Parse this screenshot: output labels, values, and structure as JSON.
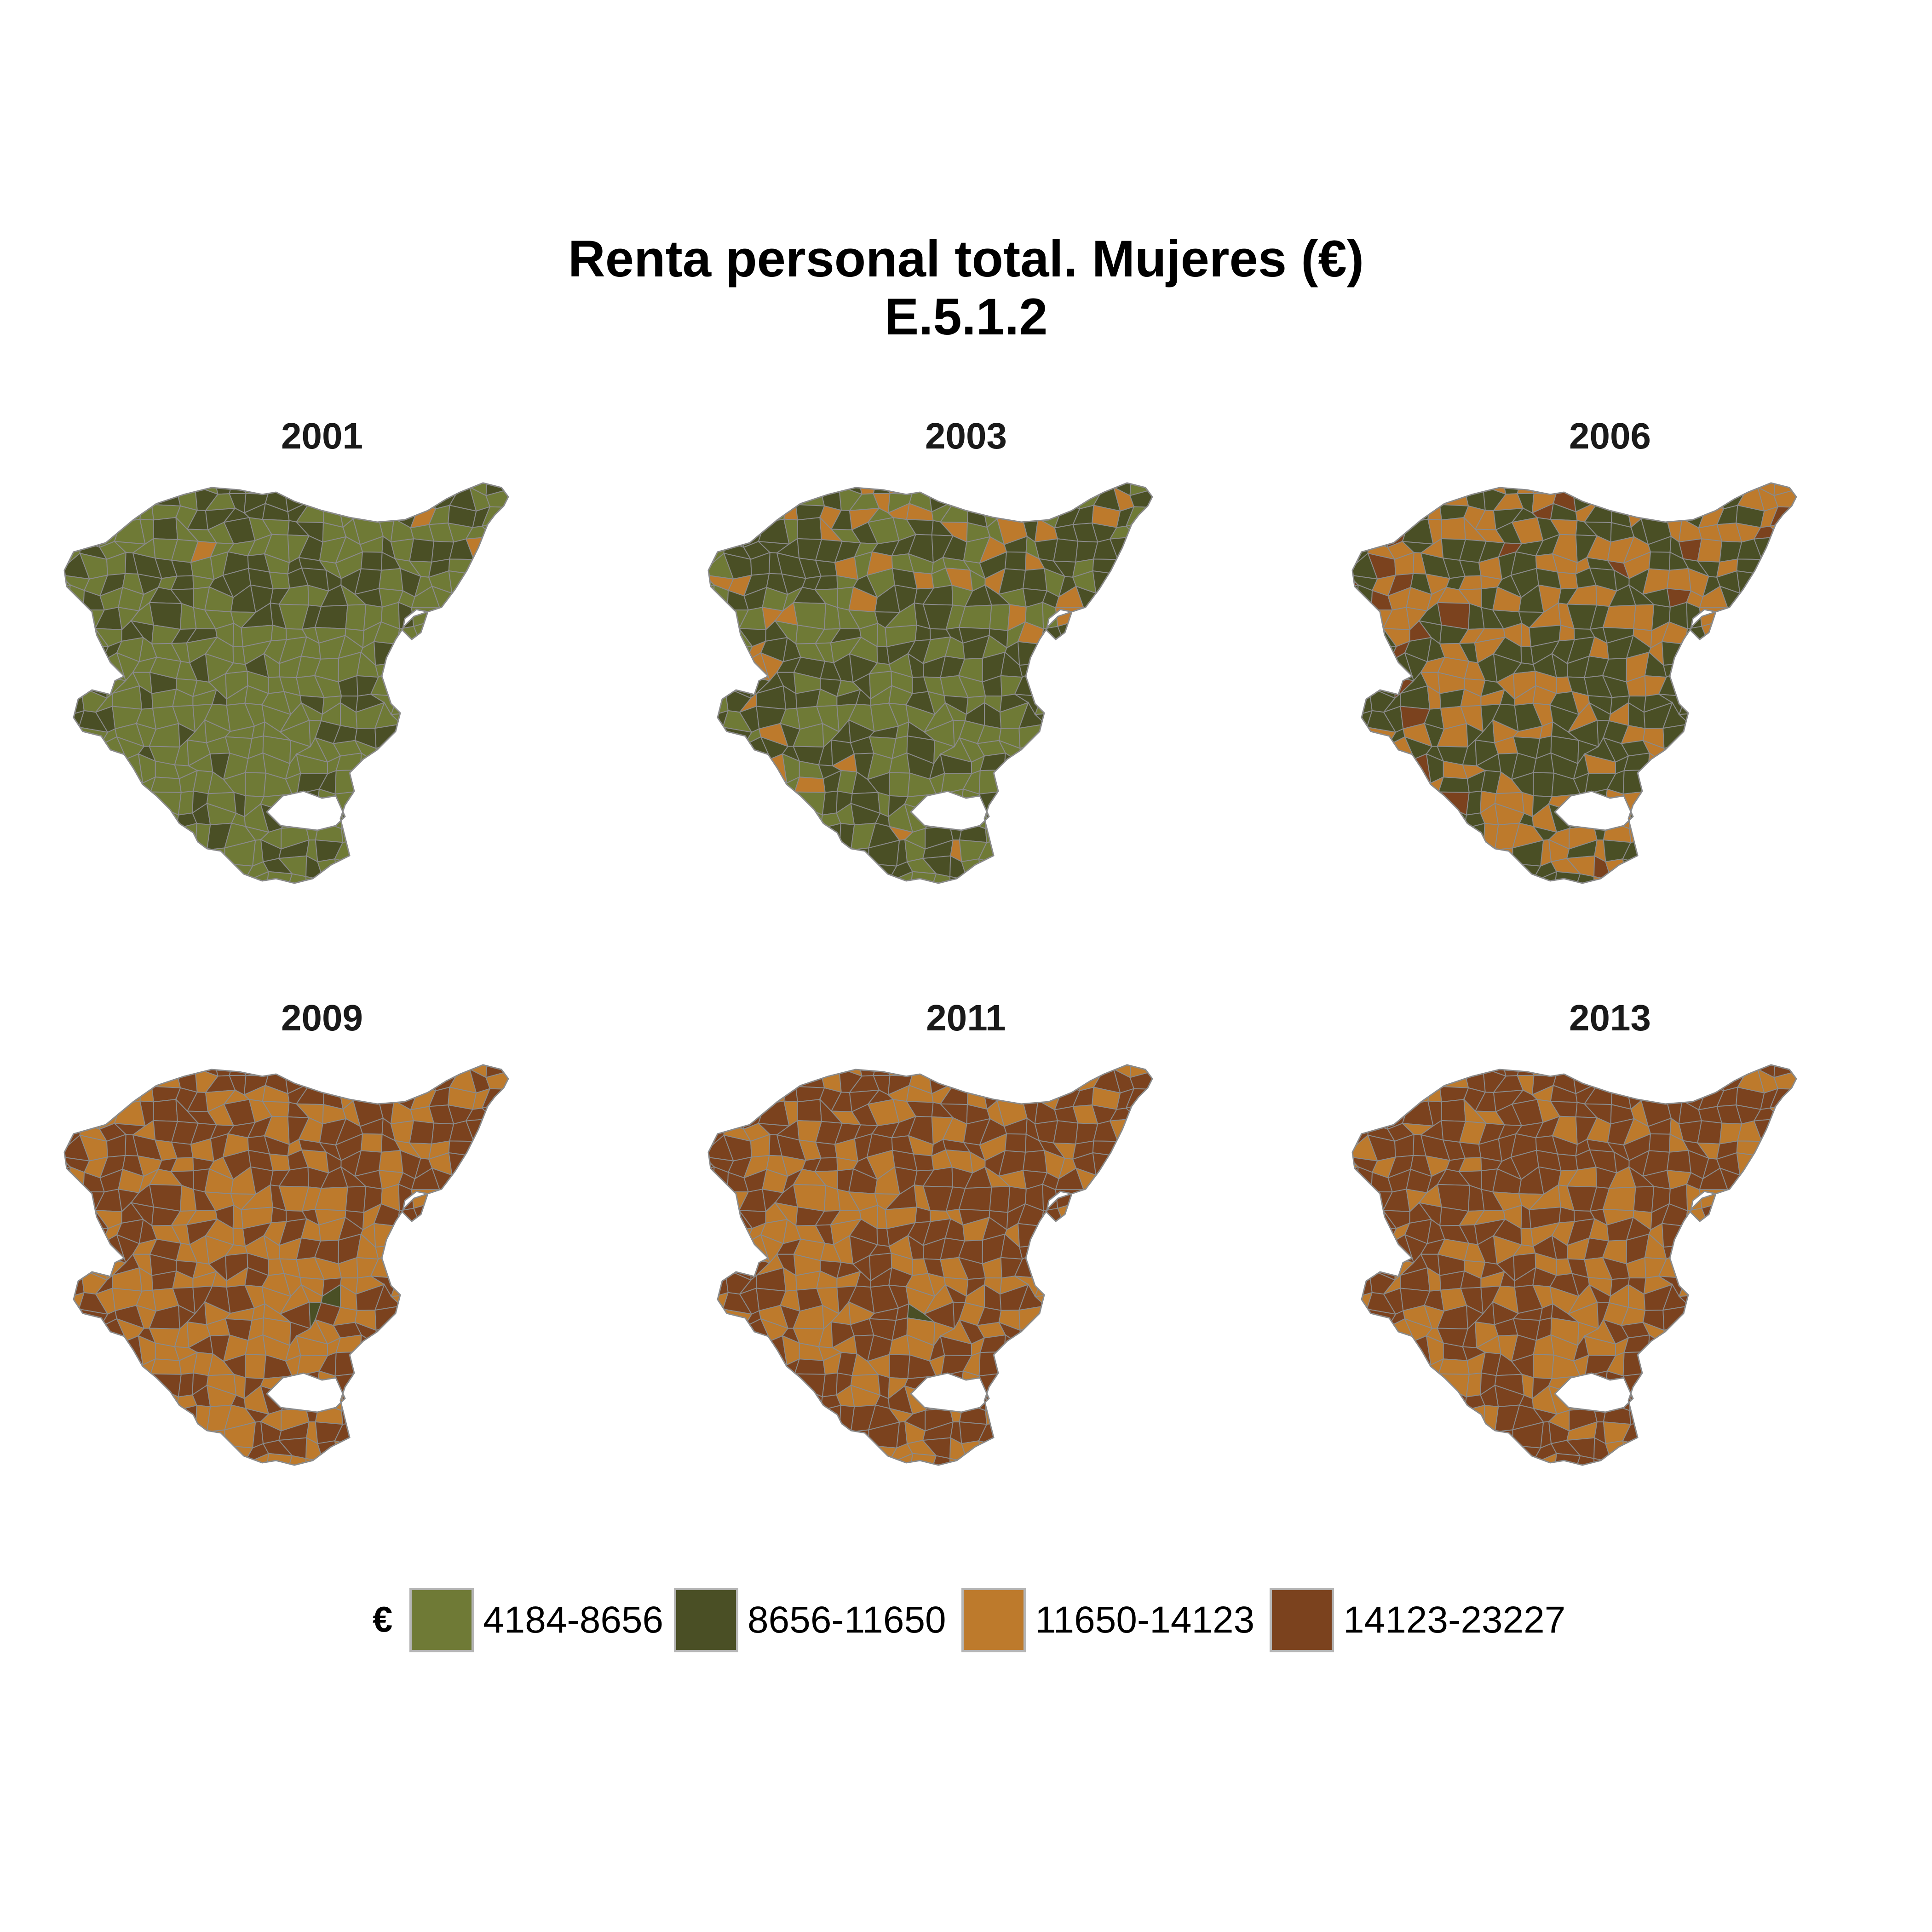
{
  "title": {
    "line1": "Renta personal total. Mujeres (€)",
    "line2": "E.5.1.2"
  },
  "colors": {
    "c1": "#6f7a36",
    "c2": "#4a4f25",
    "c3": "#bd7a2c",
    "c4": "#7b421e",
    "border": "#8a8a8a"
  },
  "legend": {
    "title": "€",
    "items": [
      {
        "label": "4184-8656",
        "color": "#6f7a36"
      },
      {
        "label": "8656-11650",
        "color": "#4a4f25"
      },
      {
        "label": "11650-14123",
        "color": "#bd7a2c"
      },
      {
        "label": "14123-23227",
        "color": "#7b421e"
      }
    ]
  },
  "panels": [
    {
      "year": "2001",
      "share": [
        0.7,
        0.28,
        0.02,
        0.0
      ]
    },
    {
      "year": "2003",
      "share": [
        0.5,
        0.38,
        0.12,
        0.0
      ]
    },
    {
      "year": "2006",
      "share": [
        0.04,
        0.55,
        0.33,
        0.08
      ]
    },
    {
      "year": "2009",
      "share": [
        0.01,
        0.1,
        0.44,
        0.45
      ]
    },
    {
      "year": "2011",
      "share": [
        0.0,
        0.07,
        0.38,
        0.55
      ]
    },
    {
      "year": "2013",
      "share": [
        0.0,
        0.05,
        0.4,
        0.55
      ]
    }
  ]
}
